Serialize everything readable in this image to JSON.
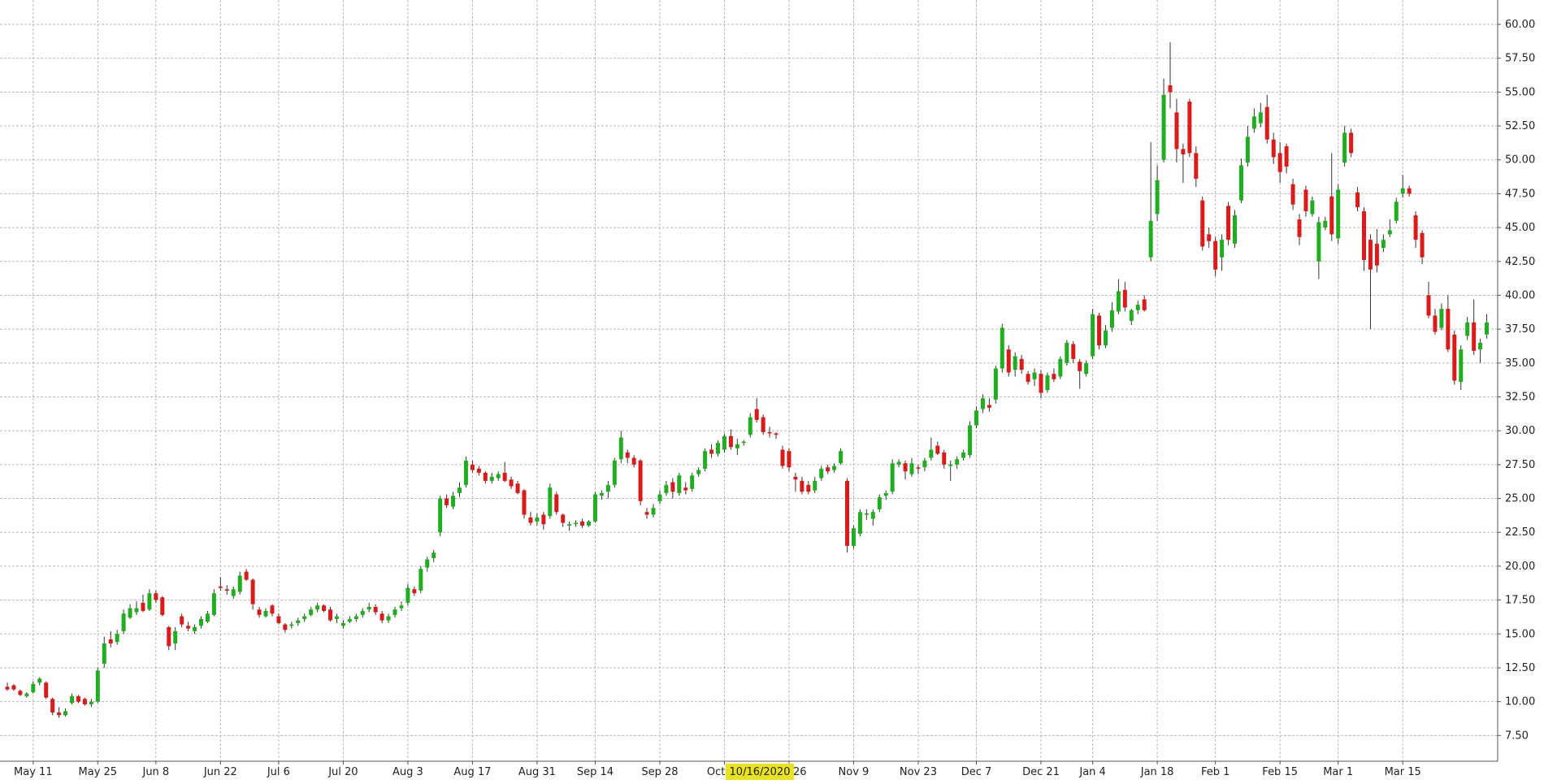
{
  "chart_data": {
    "type": "candlestick",
    "up_color": "#1fae1f",
    "down_color": "#dd1a1a",
    "grid": true,
    "crosshair_label": "10/16/2020",
    "ylim": [
      5.6,
      61.8
    ],
    "yticks": [
      {
        "value": 7.5,
        "label": "7.50"
      },
      {
        "value": 10,
        "label": "10.00"
      },
      {
        "value": 12.5,
        "label": "12.50"
      },
      {
        "value": 15,
        "label": "15.00"
      },
      {
        "value": 17.5,
        "label": "17.50"
      },
      {
        "value": 20,
        "label": "20.00"
      },
      {
        "value": 22.5,
        "label": "22.50"
      },
      {
        "value": 25,
        "label": "25.00"
      },
      {
        "value": 27.5,
        "label": "27.50"
      },
      {
        "value": 30,
        "label": "30.00"
      },
      {
        "value": 32.5,
        "label": "32.50"
      },
      {
        "value": 35,
        "label": "35.00"
      },
      {
        "value": 37.5,
        "label": "37.50"
      },
      {
        "value": 40,
        "label": "40.00"
      },
      {
        "value": 42.5,
        "label": "42.50"
      },
      {
        "value": 45,
        "label": "45.00"
      },
      {
        "value": 47.5,
        "label": "47.50"
      },
      {
        "value": 50,
        "label": "50.00"
      },
      {
        "value": 52.5,
        "label": "52.50"
      },
      {
        "value": 55,
        "label": "55.00"
      },
      {
        "value": 57.5,
        "label": "57.50"
      },
      {
        "value": 60,
        "label": "60.00"
      }
    ],
    "categories": [
      null,
      null,
      null,
      null,
      "May 11",
      null,
      null,
      null,
      null,
      null,
      null,
      null,
      null,
      null,
      "May 25",
      null,
      null,
      null,
      null,
      null,
      null,
      null,
      null,
      "Jun 8",
      null,
      null,
      null,
      null,
      null,
      null,
      null,
      null,
      null,
      "Jun 22",
      null,
      null,
      null,
      null,
      null,
      null,
      null,
      null,
      "Jul 6",
      null,
      null,
      null,
      null,
      null,
      null,
      null,
      null,
      null,
      "Jul 20",
      null,
      null,
      null,
      null,
      null,
      null,
      null,
      null,
      null,
      "Aug 3",
      null,
      null,
      null,
      null,
      null,
      null,
      null,
      null,
      null,
      "Aug 17",
      null,
      null,
      null,
      null,
      null,
      null,
      null,
      null,
      null,
      "Aug 31",
      null,
      null,
      null,
      null,
      null,
      null,
      null,
      null,
      "Sep 14",
      null,
      null,
      null,
      null,
      null,
      null,
      null,
      null,
      null,
      "Sep 28",
      null,
      null,
      null,
      null,
      null,
      null,
      null,
      null,
      null,
      "Oct 12",
      null,
      null,
      null,
      null,
      null,
      null,
      null,
      null,
      null,
      "Oct 26",
      null,
      null,
      null,
      null,
      null,
      null,
      null,
      null,
      null,
      "Nov 9",
      null,
      null,
      null,
      null,
      null,
      null,
      null,
      null,
      null,
      "Nov 23",
      null,
      null,
      null,
      null,
      null,
      null,
      null,
      null,
      "Dec 7",
      null,
      null,
      null,
      null,
      null,
      null,
      null,
      null,
      null,
      "Dec 21",
      null,
      null,
      null,
      null,
      null,
      null,
      null,
      "Jan 4",
      null,
      null,
      null,
      null,
      null,
      null,
      null,
      null,
      null,
      "Jan 18",
      null,
      null,
      null,
      null,
      null,
      null,
      null,
      null,
      "Feb 1",
      null,
      null,
      null,
      null,
      null,
      null,
      null,
      null,
      null,
      "Feb 15",
      null,
      null,
      null,
      null,
      null,
      null,
      null,
      null,
      "Mar 1",
      null,
      null,
      null,
      null,
      null,
      null,
      null,
      null,
      null,
      "Mar 15",
      null,
      null,
      null,
      null,
      null,
      null,
      null,
      null,
      null,
      null,
      null,
      null,
      null
    ],
    "open": [
      11.1,
      11.2,
      10.8,
      10.4,
      10.7,
      11.4,
      11.4,
      10.2,
      9.2,
      9.0,
      9.9,
      10.4,
      10.2,
      9.8,
      10.0,
      12.8,
      14.6,
      14.4,
      15.2,
      16.2,
      16.6,
      17.3,
      16.8,
      18.0,
      17.7,
      15.5,
      14.3,
      16.3,
      15.6,
      15.2,
      15.6,
      15.9,
      16.4,
      18.5,
      18.3,
      17.8,
      18.1,
      19.6,
      19.0,
      16.8,
      16.3,
      17.1,
      16.3,
      15.7,
      15.6,
      15.8,
      16.1,
      16.4,
      16.8,
      17.1,
      16.8,
      16.1,
      15.6,
      15.9,
      16.1,
      16.4,
      16.8,
      17.0,
      16.5,
      16.0,
      16.4,
      16.9,
      17.3,
      18.3,
      18.2,
      19.9,
      20.6,
      22.5,
      25.0,
      24.4,
      25.4,
      26.0,
      27.5,
      27.2,
      26.9,
      26.3,
      26.5,
      26.9,
      26.4,
      26.1,
      25.6,
      23.6,
      23.3,
      23.8,
      23.7,
      25.3,
      23.8,
      23.0,
      23.1,
      23.3,
      23.0,
      23.3,
      25.2,
      25.5,
      26.0,
      27.9,
      28.4,
      28.0,
      27.8,
      24.0,
      23.8,
      24.8,
      25.4,
      26.2,
      25.4,
      25.8,
      25.7,
      26.8,
      27.2,
      28.6,
      28.3,
      28.6,
      29.6,
      28.7,
      29.1,
      29.7,
      31.6,
      31.0,
      29.9,
      29.8,
      28.6,
      28.5,
      26.6,
      26.3,
      26.0,
      25.6,
      26.5,
      27.3,
      27.1,
      27.6,
      26.3,
      21.5,
      22.4,
      23.8,
      23.5,
      24.2,
      25.2,
      25.5,
      27.5,
      27.6,
      26.8,
      27.3,
      27.3,
      28.0,
      28.9,
      28.4,
      27.4,
      27.5,
      28.0,
      28.2,
      30.4,
      31.6,
      31.9,
      32.3,
      34.6,
      36.0,
      34.5,
      35.3,
      34.2,
      33.8,
      34.2,
      33.0,
      34.2,
      34.0,
      35.0,
      36.4,
      35.1,
      34.2,
      35.5,
      38.5,
      36.3,
      37.6,
      38.8,
      40.4,
      38.1,
      38.9,
      39.7,
      42.8,
      46.0,
      50.0,
      55.5,
      53.5,
      50.8,
      54.3,
      50.5,
      47.0,
      44.5,
      44.0,
      42.8,
      46.6,
      43.8,
      47.0,
      49.8,
      52.3,
      52.7,
      53.9,
      51.5,
      50.5,
      51.0,
      48.2,
      45.6,
      47.8,
      46.0,
      42.5,
      45.0,
      47.3,
      44.2,
      49.8,
      52.0,
      47.6,
      46.2,
      44.1,
      43.8,
      43.5,
      44.5,
      45.5,
      47.5,
      47.9,
      45.9,
      44.6,
      40.0,
      38.5,
      37.6,
      39.0,
      37.1,
      33.6,
      37.0,
      38.0,
      36.0,
      37.1
    ],
    "high": [
      11.4,
      11.3,
      10.9,
      10.7,
      11.5,
      11.8,
      11.5,
      10.3,
      9.6,
      9.5,
      10.6,
      10.5,
      10.3,
      10.2,
      12.5,
      14.8,
      15.2,
      15.3,
      16.8,
      17.2,
      17.4,
      17.9,
      18.3,
      18.2,
      17.8,
      15.6,
      15.5,
      16.5,
      15.9,
      15.7,
      16.3,
      16.7,
      18.3,
      19.2,
      18.6,
      18.5,
      19.6,
      19.8,
      19.1,
      17.0,
      16.9,
      17.2,
      16.5,
      15.8,
      15.9,
      16.2,
      16.5,
      17.0,
      17.3,
      17.2,
      17.0,
      16.5,
      16.0,
      16.3,
      16.5,
      16.9,
      17.3,
      17.2,
      16.7,
      16.5,
      17.0,
      17.4,
      18.7,
      18.5,
      20.0,
      20.7,
      21.2,
      25.2,
      25.3,
      25.5,
      26.2,
      28.1,
      27.8,
      27.4,
      27.0,
      26.9,
      27.0,
      27.7,
      26.6,
      26.3,
      25.7,
      24.0,
      23.9,
      24.0,
      26.1,
      25.5,
      23.9,
      23.3,
      23.4,
      23.5,
      23.4,
      25.5,
      25.6,
      26.3,
      28.0,
      30.0,
      28.6,
      28.2,
      27.9,
      24.3,
      24.6,
      25.6,
      26.3,
      26.5,
      26.9,
      26.2,
      26.9,
      27.3,
      28.7,
      29.0,
      29.3,
      29.8,
      30.1,
      29.4,
      29.3,
      31.3,
      32.4,
      31.2,
      30.3,
      29.9,
      28.9,
      28.7,
      26.9,
      26.6,
      26.3,
      26.6,
      27.4,
      27.5,
      27.6,
      28.7,
      26.5,
      23.0,
      24.2,
      24.2,
      24.2,
      25.3,
      25.6,
      27.9,
      27.9,
      27.8,
      28.0,
      27.5,
      28.0,
      29.5,
      29.2,
      28.6,
      27.8,
      28.1,
      28.6,
      30.7,
      31.8,
      32.7,
      32.4,
      34.8,
      37.9,
      36.3,
      35.8,
      35.6,
      34.4,
      34.6,
      34.5,
      34.3,
      34.6,
      35.5,
      36.7,
      36.6,
      35.3,
      35.2,
      39.0,
      38.7,
      37.8,
      39.5,
      41.2,
      41.0,
      39.0,
      39.6,
      40.0,
      51.3,
      49.6,
      56.0,
      58.7,
      54.5,
      51.2,
      54.5,
      51.0,
      47.3,
      45.0,
      44.3,
      44.5,
      46.9,
      46.3,
      50.1,
      52.5,
      53.8,
      54.2,
      54.8,
      52.0,
      51.3,
      51.2,
      48.6,
      46.0,
      48.1,
      47.3,
      45.8,
      45.8,
      50.5,
      48.2,
      52.5,
      52.3,
      48.0,
      46.5,
      44.5,
      44.9,
      44.5,
      45.6,
      47.2,
      48.9,
      48.1,
      46.2,
      44.8,
      41.0,
      39.0,
      39.4,
      40.0,
      37.4,
      36.3,
      38.4,
      39.7,
      36.8,
      38.6
    ],
    "low": [
      10.8,
      10.8,
      10.4,
      10.3,
      10.6,
      11.2,
      10.2,
      9.0,
      8.8,
      8.9,
      9.8,
      9.9,
      9.7,
      9.6,
      9.9,
      12.5,
      14.0,
      14.2,
      15.0,
      16.1,
      16.4,
      16.6,
      16.7,
      17.3,
      16.3,
      13.8,
      13.8,
      15.5,
      15.2,
      15.0,
      15.4,
      15.8,
      16.3,
      18.2,
      17.9,
      17.6,
      17.9,
      18.9,
      16.8,
      16.2,
      16.2,
      16.3,
      15.7,
      15.1,
      15.4,
      15.6,
      15.9,
      16.3,
      16.6,
      16.6,
      15.9,
      15.8,
      15.4,
      15.8,
      15.9,
      16.2,
      16.6,
      16.4,
      15.8,
      15.8,
      16.2,
      16.7,
      17.1,
      17.8,
      18.0,
      19.6,
      20.3,
      22.2,
      24.3,
      24.2,
      25.1,
      25.8,
      26.9,
      26.7,
      26.1,
      26.1,
      26.3,
      26.2,
      25.7,
      25.3,
      23.5,
      23.0,
      23.0,
      22.7,
      23.5,
      23.8,
      22.9,
      22.6,
      22.9,
      22.8,
      22.9,
      23.2,
      24.9,
      25.0,
      25.8,
      27.6,
      27.6,
      27.3,
      24.5,
      23.5,
      23.6,
      24.6,
      25.2,
      25.0,
      25.2,
      25.3,
      25.5,
      26.6,
      27.0,
      28.0,
      28.1,
      28.4,
      28.6,
      28.2,
      28.9,
      29.5,
      30.6,
      29.7,
      29.5,
      29.4,
      27.2,
      27.0,
      25.5,
      25.3,
      25.3,
      25.4,
      26.3,
      26.8,
      26.9,
      27.5,
      21.0,
      21.3,
      22.2,
      23.4,
      23.0,
      24.0,
      24.9,
      25.3,
      27.3,
      26.4,
      26.6,
      26.8,
      27.0,
      27.8,
      28.2,
      27.2,
      26.3,
      27.2,
      27.8,
      28.0,
      30.2,
      31.3,
      31.4,
      32.0,
      34.3,
      34.0,
      34.0,
      34.2,
      33.4,
      33.3,
      32.4,
      32.8,
      33.6,
      33.8,
      34.8,
      35.0,
      33.1,
      34.0,
      35.3,
      36.0,
      36.1,
      37.3,
      38.6,
      38.8,
      37.8,
      38.6,
      38.8,
      42.5,
      45.5,
      49.8,
      53.8,
      49.8,
      48.3,
      50.2,
      48.0,
      43.3,
      43.5,
      41.4,
      41.8,
      43.7,
      43.5,
      46.8,
      49.5,
      52.0,
      52.4,
      51.2,
      49.7,
      48.3,
      49.0,
      46.3,
      43.7,
      45.8,
      45.8,
      41.2,
      44.8,
      44.0,
      43.8,
      49.5,
      50.2,
      46.2,
      41.8,
      37.5,
      41.7,
      43.2,
      44.3,
      45.3,
      47.2,
      47.3,
      43.5,
      42.3,
      38.3,
      37.1,
      37.4,
      35.8,
      33.4,
      33.0,
      36.7,
      35.6,
      35.0,
      36.8
    ],
    "close": [
      10.9,
      10.9,
      10.5,
      10.6,
      11.3,
      11.7,
      10.3,
      9.2,
      9.0,
      9.3,
      10.4,
      10.0,
      9.8,
      10.0,
      12.3,
      14.3,
      14.3,
      15.0,
      16.5,
      16.9,
      16.9,
      16.7,
      18.0,
      17.5,
      16.4,
      14.1,
      15.2,
      15.7,
      15.4,
      15.5,
      16.1,
      16.5,
      18.0,
      18.4,
      18.2,
      18.3,
      19.3,
      19.0,
      17.2,
      16.4,
      16.7,
      16.5,
      15.8,
      15.3,
      15.7,
      16.0,
      16.3,
      16.8,
      17.1,
      16.7,
      16.0,
      16.3,
      15.8,
      16.1,
      16.3,
      16.7,
      17.0,
      16.6,
      16.0,
      16.3,
      16.8,
      17.1,
      18.4,
      18.0,
      19.8,
      20.5,
      21.0,
      25.0,
      24.5,
      25.2,
      25.8,
      27.8,
      27.1,
      26.9,
      26.3,
      26.6,
      26.8,
      26.3,
      25.9,
      25.4,
      23.8,
      23.2,
      23.6,
      23.1,
      25.8,
      24.0,
      23.2,
      23.1,
      23.2,
      23.0,
      23.3,
      25.3,
      25.4,
      26.0,
      27.8,
      29.5,
      28.0,
      27.5,
      24.8,
      23.8,
      24.3,
      25.3,
      26.0,
      25.5,
      26.7,
      25.6,
      26.7,
      27.1,
      28.5,
      28.3,
      29.1,
      29.6,
      28.8,
      29.0,
      29.2,
      31.0,
      30.8,
      29.9,
      29.8,
      29.7,
      27.4,
      27.3,
      26.4,
      25.5,
      25.5,
      26.3,
      27.2,
      27.0,
      27.4,
      28.5,
      21.5,
      22.8,
      24.0,
      23.9,
      24.0,
      25.1,
      25.4,
      27.6,
      27.7,
      27.0,
      27.6,
      27.2,
      27.8,
      28.6,
      28.3,
      27.5,
      27.5,
      27.9,
      28.4,
      30.4,
      31.5,
      32.4,
      31.7,
      34.6,
      37.6,
      34.3,
      35.5,
      34.5,
      33.6,
      34.3,
      32.8,
      34.1,
      33.8,
      35.3,
      36.5,
      35.3,
      34.4,
      35.0,
      38.6,
      36.3,
      37.4,
      38.9,
      40.3,
      39.1,
      38.9,
      39.3,
      38.9,
      45.5,
      48.5,
      54.8,
      55.0,
      50.8,
      50.4,
      50.5,
      48.6,
      43.6,
      44.0,
      41.9,
      44.1,
      44.1,
      45.9,
      49.6,
      51.7,
      53.2,
      53.5,
      51.5,
      50.2,
      49.1,
      49.5,
      46.7,
      44.3,
      46.2,
      47.0,
      45.4,
      45.5,
      44.5,
      47.8,
      52.0,
      50.5,
      46.5,
      42.6,
      41.9,
      42.2,
      44.1,
      44.8,
      46.9,
      47.9,
      47.5,
      44.1,
      42.8,
      38.5,
      37.3,
      39.0,
      36.0,
      33.7,
      36.0,
      38.0,
      35.9,
      36.5,
      38.0
    ]
  }
}
